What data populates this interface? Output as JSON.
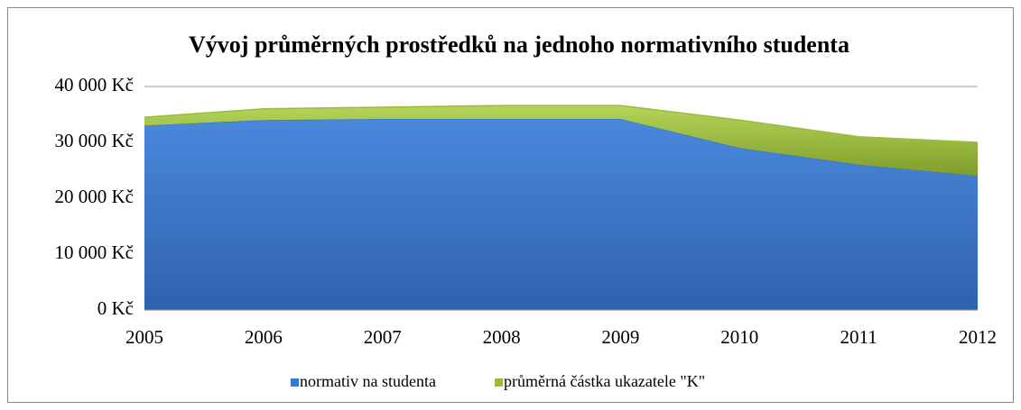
{
  "chart_data": {
    "type": "stacked_area",
    "title": "Vývoj průměrných prostředků na jednoho normativního studenta",
    "categories": [
      "2005",
      "2006",
      "2007",
      "2008",
      "2009",
      "2010",
      "2011",
      "2012"
    ],
    "series": [
      {
        "name": "normativ na studenta",
        "color": "#3b78cc",
        "values": [
          33000,
          34000,
          34200,
          34200,
          34200,
          29000,
          26000,
          24000
        ]
      },
      {
        "name": "průměrná částka ukazatele \"K\"",
        "color": "#9bbb3c",
        "values": [
          1500,
          2000,
          2100,
          2400,
          2400,
          5000,
          5000,
          6000
        ]
      }
    ],
    "ylim": [
      0,
      40000
    ],
    "yticks": [
      {
        "value": 0,
        "label": "0 Kč"
      },
      {
        "value": 10000,
        "label": "10 000 Kč"
      },
      {
        "value": 20000,
        "label": "20 000 Kč"
      },
      {
        "value": 30000,
        "label": "30 000 Kč"
      },
      {
        "value": 40000,
        "label": "40 000 Kč"
      }
    ],
    "grid": true,
    "legend": "bottom"
  }
}
